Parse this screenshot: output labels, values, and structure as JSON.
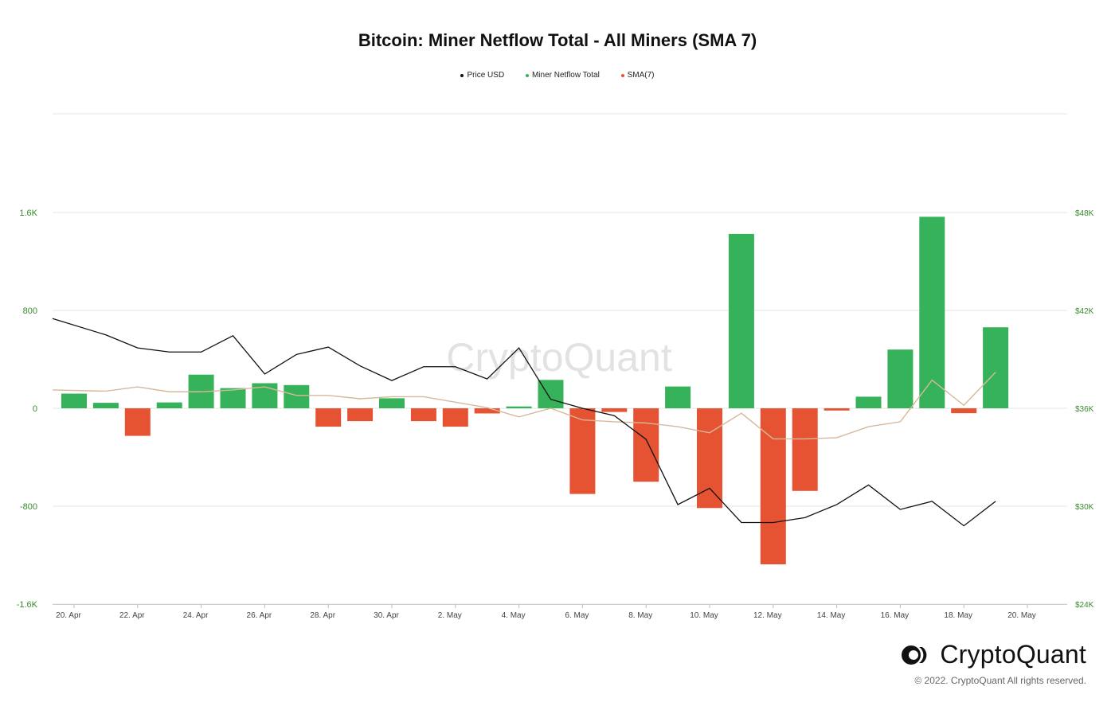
{
  "chart_data": {
    "type": "bar",
    "title": "Bitcoin: Miner Netflow Total - All Miners (SMA 7)",
    "legend_position": "top-center",
    "grid": true,
    "watermark": "CryptoQuant",
    "x_ticks": [
      "20. Apr",
      "22. Apr",
      "24. Apr",
      "26. Apr",
      "28. Apr",
      "30. Apr",
      "2. May",
      "4. May",
      "6. May",
      "8. May",
      "10. May",
      "12. May",
      "14. May",
      "16. May",
      "18. May",
      "20. May"
    ],
    "y_left": {
      "ticks": [
        "1.6K",
        "800",
        "0",
        "-800",
        "-1.6K"
      ],
      "values": [
        1600,
        800,
        0,
        -800,
        -1600
      ],
      "range": [
        -1600,
        1600
      ]
    },
    "y_right": {
      "ticks": [
        "$48K",
        "$42K",
        "$36K",
        "$30K",
        "$24K"
      ],
      "values": [
        48000,
        42000,
        36000,
        30000,
        24000
      ],
      "range": [
        24000,
        48000
      ]
    },
    "dates": [
      "20. Apr",
      "21. Apr",
      "22. Apr",
      "23. Apr",
      "24. Apr",
      "25. Apr",
      "26. Apr",
      "27. Apr",
      "28. Apr",
      "29. Apr",
      "30. Apr",
      "1. May",
      "2. May",
      "3. May",
      "4. May",
      "5. May",
      "6. May",
      "7. May",
      "8. May",
      "9. May",
      "10. May",
      "11. May",
      "12. May",
      "13. May",
      "14. May",
      "15. May",
      "16. May",
      "17. May",
      "18. May",
      "19. May"
    ],
    "series": [
      {
        "name": "Price USD",
        "kind": "line",
        "axis": "right",
        "color": "#111111",
        "values": [
          41500,
          40500,
          39700,
          39450,
          39450,
          40450,
          38100,
          39300,
          39750,
          38600,
          37700,
          38550,
          38550,
          37800,
          39700,
          36550,
          36000,
          35550,
          34100,
          30100,
          31100,
          29000,
          29000,
          29300,
          30100,
          31300,
          29800,
          30300,
          28800,
          30300
        ]
      },
      {
        "name": "Miner Netflow Total",
        "kind": "bar",
        "axis": "left",
        "color": "#36b35a",
        "negative_color": "#e65332",
        "values": [
          120,
          45,
          -225,
          48,
          275,
          165,
          205,
          190,
          -150,
          -105,
          82,
          -105,
          -150,
          -42,
          15,
          232,
          -700,
          -30,
          -600,
          178,
          -815,
          1425,
          -1275,
          -675,
          -18,
          95,
          480,
          1565,
          -40,
          662
        ]
      },
      {
        "name": "SMA(7)",
        "kind": "line",
        "axis": "left",
        "color": "#d8b89a",
        "values": [
          150,
          140,
          175,
          135,
          135,
          150,
          175,
          105,
          105,
          78,
          95,
          95,
          50,
          5,
          -70,
          0,
          -95,
          -110,
          -120,
          -150,
          -200,
          -40,
          -250,
          -250,
          -240,
          -150,
          -110,
          230,
          25,
          295
        ]
      }
    ]
  },
  "branding": {
    "logo_text": "CryptoQuant",
    "copyright": "© 2022. CryptoQuant All rights reserved."
  }
}
